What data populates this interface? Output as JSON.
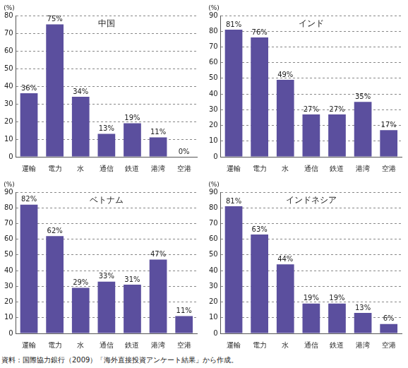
{
  "chart_data": [
    {
      "type": "bar",
      "title": "中国",
      "ylabel": "(%)",
      "categories": [
        "運輸",
        "電力",
        "水",
        "通信",
        "鉄道",
        "港湾",
        "空港"
      ],
      "values": [
        36,
        75,
        34,
        13,
        19,
        11,
        0
      ],
      "value_labels": [
        "36%",
        "75%",
        "34%",
        "13%",
        "19%",
        "11%",
        "0%"
      ],
      "color": "#5b4f9e",
      "ylim": [
        0,
        80
      ],
      "yticks": [
        0,
        10,
        20,
        30,
        40,
        50,
        60,
        70,
        80
      ],
      "grid": true,
      "data_labels": true
    },
    {
      "type": "bar",
      "title": "インド",
      "ylabel": "(%)",
      "categories": [
        "運輸",
        "電力",
        "水",
        "通信",
        "鉄道",
        "港湾",
        "空港"
      ],
      "values": [
        81,
        76,
        49,
        27,
        27,
        35,
        17
      ],
      "value_labels": [
        "81%",
        "76%",
        "49%",
        "27%",
        "27%",
        "35%",
        "17%"
      ],
      "color": "#5b4f9e",
      "ylim": [
        0,
        90
      ],
      "yticks": [
        0,
        10,
        20,
        30,
        40,
        50,
        60,
        70,
        80,
        90
      ],
      "grid": true,
      "data_labels": true
    },
    {
      "type": "bar",
      "title": "ベトナム",
      "ylabel": "(%)",
      "categories": [
        "運輸",
        "電力",
        "水",
        "通信",
        "鉄道",
        "港湾",
        "空港"
      ],
      "values": [
        82,
        62,
        29,
        33,
        31,
        47,
        11
      ],
      "value_labels": [
        "82%",
        "62%",
        "29%",
        "33%",
        "31%",
        "47%",
        "11%"
      ],
      "color": "#5b4f9e",
      "ylim": [
        0,
        90
      ],
      "yticks": [
        0,
        10,
        20,
        30,
        40,
        50,
        60,
        70,
        80,
        90
      ],
      "grid": true,
      "data_labels": true
    },
    {
      "type": "bar",
      "title": "インドネシア",
      "ylabel": "(%)",
      "categories": [
        "運輸",
        "電力",
        "水",
        "通信",
        "鉄道",
        "港湾",
        "空港"
      ],
      "values": [
        81,
        63,
        44,
        19,
        19,
        13,
        6
      ],
      "value_labels": [
        "81%",
        "63%",
        "44%",
        "19%",
        "19%",
        "13%",
        "6%"
      ],
      "color": "#5b4f9e",
      "ylim": [
        0,
        90
      ],
      "yticks": [
        0,
        10,
        20,
        30,
        40,
        50,
        60,
        70,
        80,
        90
      ],
      "grid": true,
      "data_labels": true
    }
  ],
  "source": "資料：国際協力銀行（2009）「海外直接投資アンケート結果」から作成。"
}
